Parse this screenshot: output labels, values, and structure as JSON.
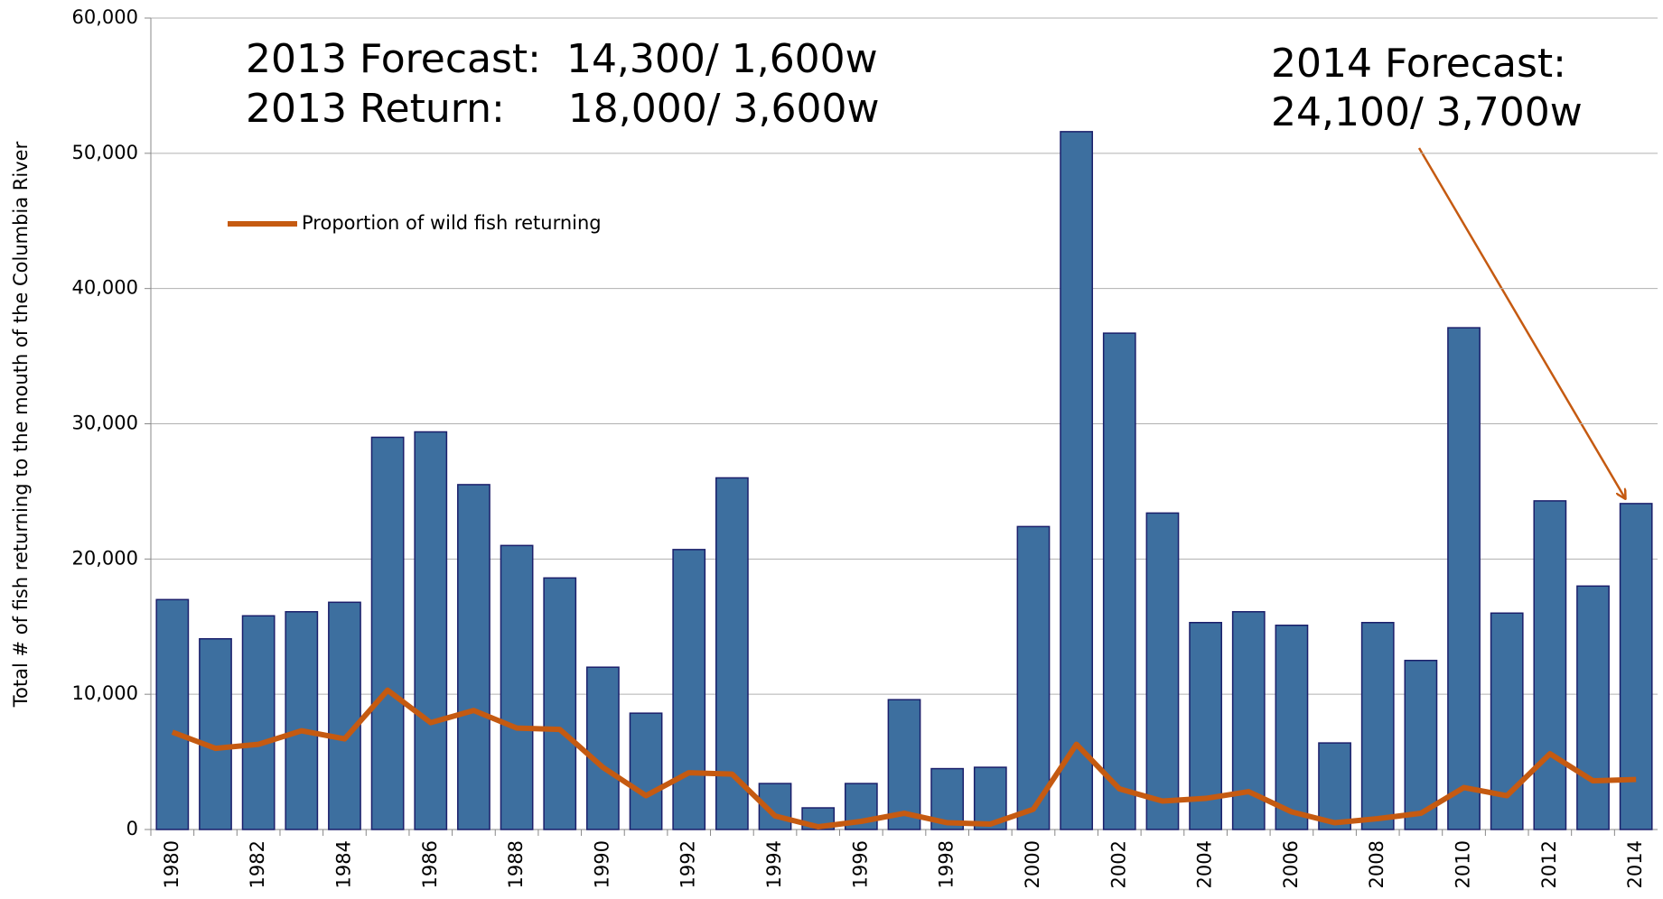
{
  "chart_data": {
    "type": "bar",
    "y_label": "Total # of fish returning to the mouth of the Columbia River",
    "annotations": [
      "2013 Forecast:  14,300/ 1,600w",
      "2013 Return:     18,000/ 3,600w",
      "2014 Forecast:",
      "24,100/ 3,700w"
    ],
    "categories": [
      "1980",
      null,
      "1982",
      null,
      "1984",
      null,
      "1986",
      null,
      "1988",
      null,
      "1990",
      null,
      "1992",
      null,
      "1994",
      null,
      "1996",
      null,
      "1998",
      null,
      "2000",
      null,
      "2002",
      null,
      "2004",
      null,
      "2006",
      null,
      "2008",
      null,
      "2010",
      null,
      "2012",
      null,
      "2014"
    ],
    "series": [
      {
        "type": "bar",
        "color": "#3d6f9f",
        "values": [
          17000,
          14100,
          15800,
          16100,
          16800,
          29000,
          29400,
          25500,
          21000,
          18600,
          12000,
          8600,
          20700,
          26000,
          3400,
          1600,
          3400,
          9600,
          4500,
          4600,
          22400,
          51600,
          36700,
          23400,
          15300,
          16100,
          15100,
          6400,
          15300,
          12500,
          37100,
          16000,
          24300,
          18000,
          24100
        ]
      },
      {
        "type": "line",
        "name": "Proportion of wild fish returning",
        "color": "#c55a11",
        "values": [
          7200,
          6000,
          6300,
          7300,
          6700,
          10300,
          7900,
          8800,
          7500,
          7400,
          4600,
          2500,
          4200,
          4100,
          1000,
          200,
          600,
          1200,
          500,
          400,
          1500,
          6300,
          3000,
          2100,
          2300,
          2800,
          1300,
          500,
          800,
          1200,
          3100,
          2500,
          5600,
          3600,
          3700
        ]
      }
    ],
    "ylim": [
      0,
      60000
    ],
    "yticks": [
      0,
      {
        "value": 10000,
        "label": "10,000"
      },
      {
        "value": 20000,
        "label": "20,000"
      },
      {
        "value": 30000,
        "label": "30,000"
      },
      {
        "value": 40000,
        "label": "40,000"
      },
      {
        "value": 50000,
        "label": "50,000"
      },
      {
        "value": 60000,
        "label": "60,000"
      }
    ],
    "grid": true
  }
}
